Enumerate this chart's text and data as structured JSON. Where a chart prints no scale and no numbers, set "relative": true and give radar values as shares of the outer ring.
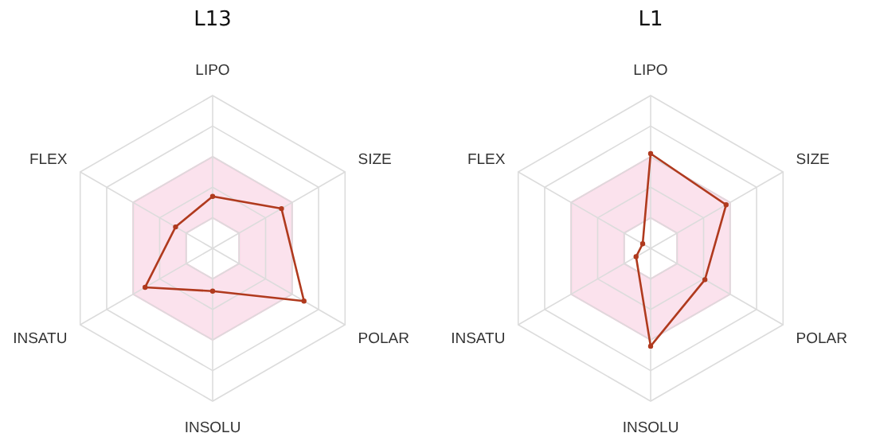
{
  "chart_data": [
    {
      "type": "radar",
      "title": "L13",
      "categories": [
        "LIPO",
        "SIZE",
        "POLAR",
        "INSOLU",
        "INSATU",
        "FLEX"
      ],
      "relative": true,
      "grid": true,
      "marker": "circle",
      "series": [
        {
          "color": "#b03a1e",
          "values": [
            0.34,
            0.52,
            0.69,
            0.28,
            0.51,
            0.28
          ]
        }
      ]
    },
    {
      "type": "radar",
      "title": "L1",
      "categories": [
        "LIPO",
        "SIZE",
        "POLAR",
        "INSOLU",
        "INSATU",
        "FLEX"
      ],
      "relative": true,
      "grid": true,
      "marker": "circle",
      "series": [
        {
          "color": "#b03a1e",
          "values": [
            0.62,
            0.57,
            0.41,
            0.64,
            0.11,
            0.06
          ]
        }
      ]
    }
  ]
}
